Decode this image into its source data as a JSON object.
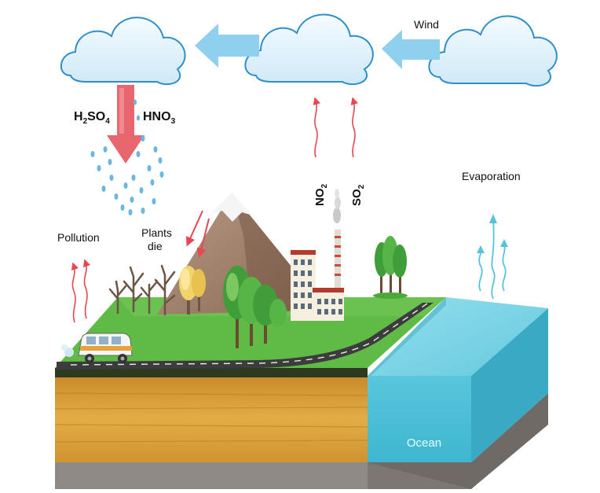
{
  "labels": {
    "wind": "Wind",
    "h2so4_main": "H",
    "h2so4_sub1": "2",
    "h2so4_mid": "SO",
    "h2so4_sub2": "4",
    "hno3_main": "HNO",
    "hno3_sub": "3",
    "no2_main": "NO",
    "no2_sub": "2",
    "so2_main": "SO",
    "so2_sub": "2",
    "evaporation": "Evaporation",
    "pollution": "Pollution",
    "plants_line1": "Plants",
    "plants_line2": "die",
    "ocean": "Ocean"
  },
  "colors": {
    "cloud": "#dff2fb",
    "cloud_edge": "#2f8fc9",
    "wind_arrow": "#8fd0ee",
    "acid_arrow": "#e8666e",
    "rain_drop": "#6ab7e4",
    "pollution_arrow": "#e84650",
    "evaporation_arrow": "#56c3da",
    "grass": "#5fbb46",
    "soil": "#d9a13a",
    "ocean": "#5cc7dd",
    "road": "#3c3c3c"
  }
}
